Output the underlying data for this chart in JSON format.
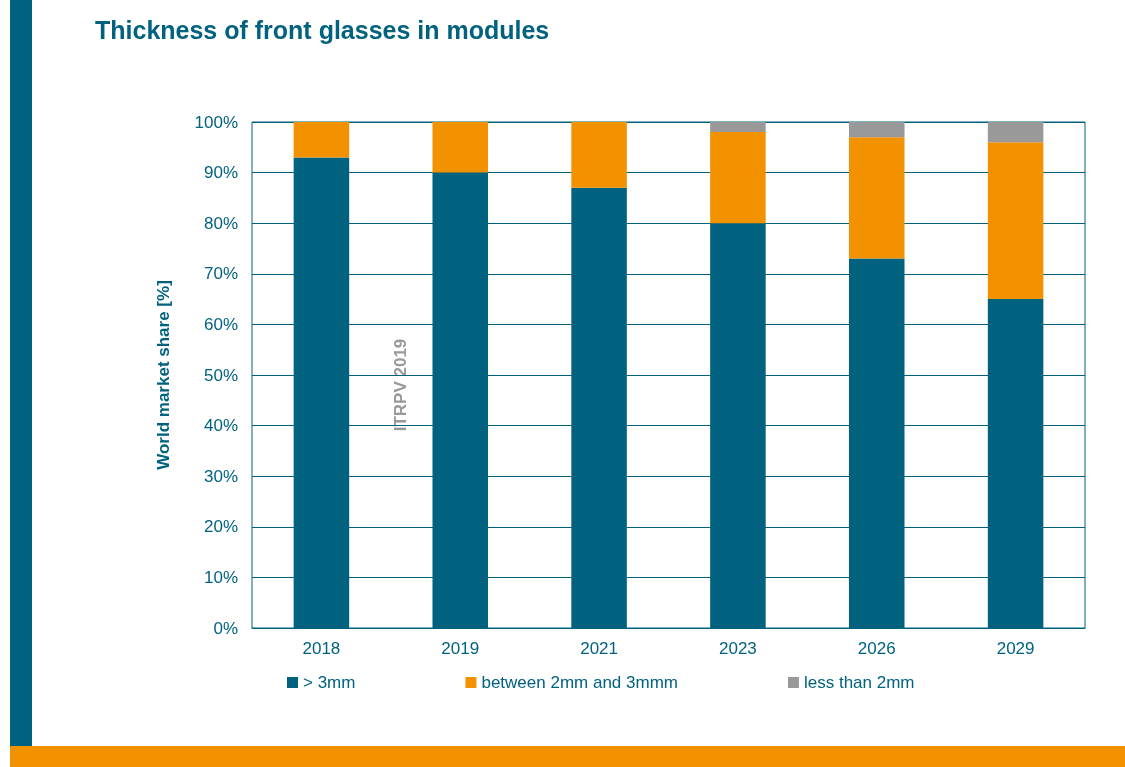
{
  "chart_data": {
    "type": "bar",
    "title": "Thickness of front glasses in modules",
    "ylabel": "World market share [%]",
    "categories": [
      "2018",
      "2019",
      "2021",
      "2023",
      "2026",
      "2029"
    ],
    "series": [
      {
        "name": "> 3mm",
        "color": "#00627f",
        "values": [
          93,
          90,
          87,
          80,
          73,
          65
        ]
      },
      {
        "name": "between 2mm and 3mmm",
        "color": "#f39200",
        "values": [
          7,
          10,
          13,
          18,
          24,
          31
        ]
      },
      {
        "name": "less than 2mm",
        "color": "#999999",
        "values": [
          0,
          0,
          0,
          2,
          3,
          4
        ]
      }
    ],
    "stacked": true,
    "ylim": [
      0,
      100
    ],
    "yticks": [
      {
        "value": 0,
        "label": "0%"
      },
      {
        "value": 10,
        "label": "10%"
      },
      {
        "value": 20,
        "label": "20%"
      },
      {
        "value": 30,
        "label": "30%"
      },
      {
        "value": 40,
        "label": "40%"
      },
      {
        "value": 50,
        "label": "50%"
      },
      {
        "value": 60,
        "label": "60%"
      },
      {
        "value": 70,
        "label": "70%"
      },
      {
        "value": 80,
        "label": "80%"
      },
      {
        "value": 90,
        "label": "90%"
      },
      {
        "value": 100,
        "label": "100%"
      }
    ],
    "grid": "y",
    "legend": "bottom",
    "annotations": [
      "ITRPV 2019"
    ]
  }
}
